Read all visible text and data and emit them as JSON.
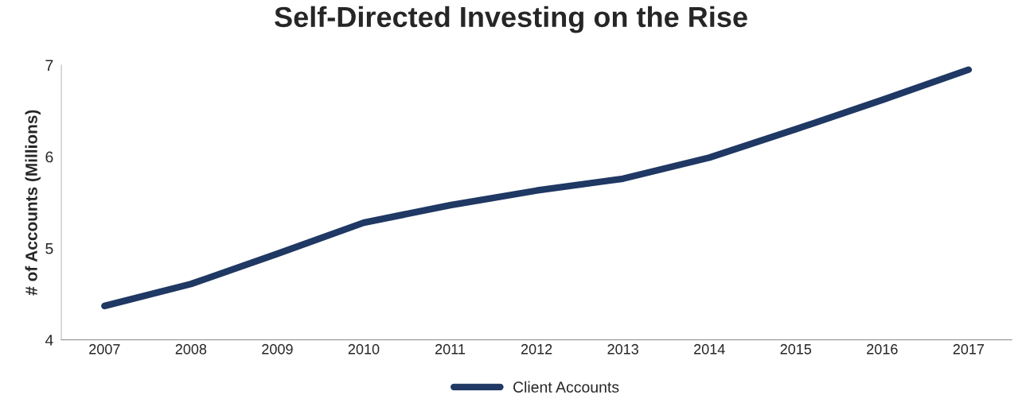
{
  "chart_data": {
    "type": "line",
    "title": "Self-Directed Investing on the Rise",
    "ylabel": "# of Accounts (Millions)",
    "categories": [
      "2007",
      "2008",
      "2009",
      "2010",
      "2011",
      "2012",
      "2013",
      "2014",
      "2015",
      "2016",
      "2017"
    ],
    "series": [
      {
        "name": "Client Accounts",
        "color": "#1f3864",
        "values": [
          4.37,
          4.61,
          4.94,
          5.28,
          5.47,
          5.63,
          5.76,
          5.99,
          6.3,
          6.62,
          6.95
        ]
      }
    ],
    "ylim": [
      4,
      7
    ],
    "yticks": [
      4,
      5,
      6,
      7
    ],
    "grid": false,
    "legend": "bottom",
    "marker": "none",
    "line_style": "solid"
  }
}
